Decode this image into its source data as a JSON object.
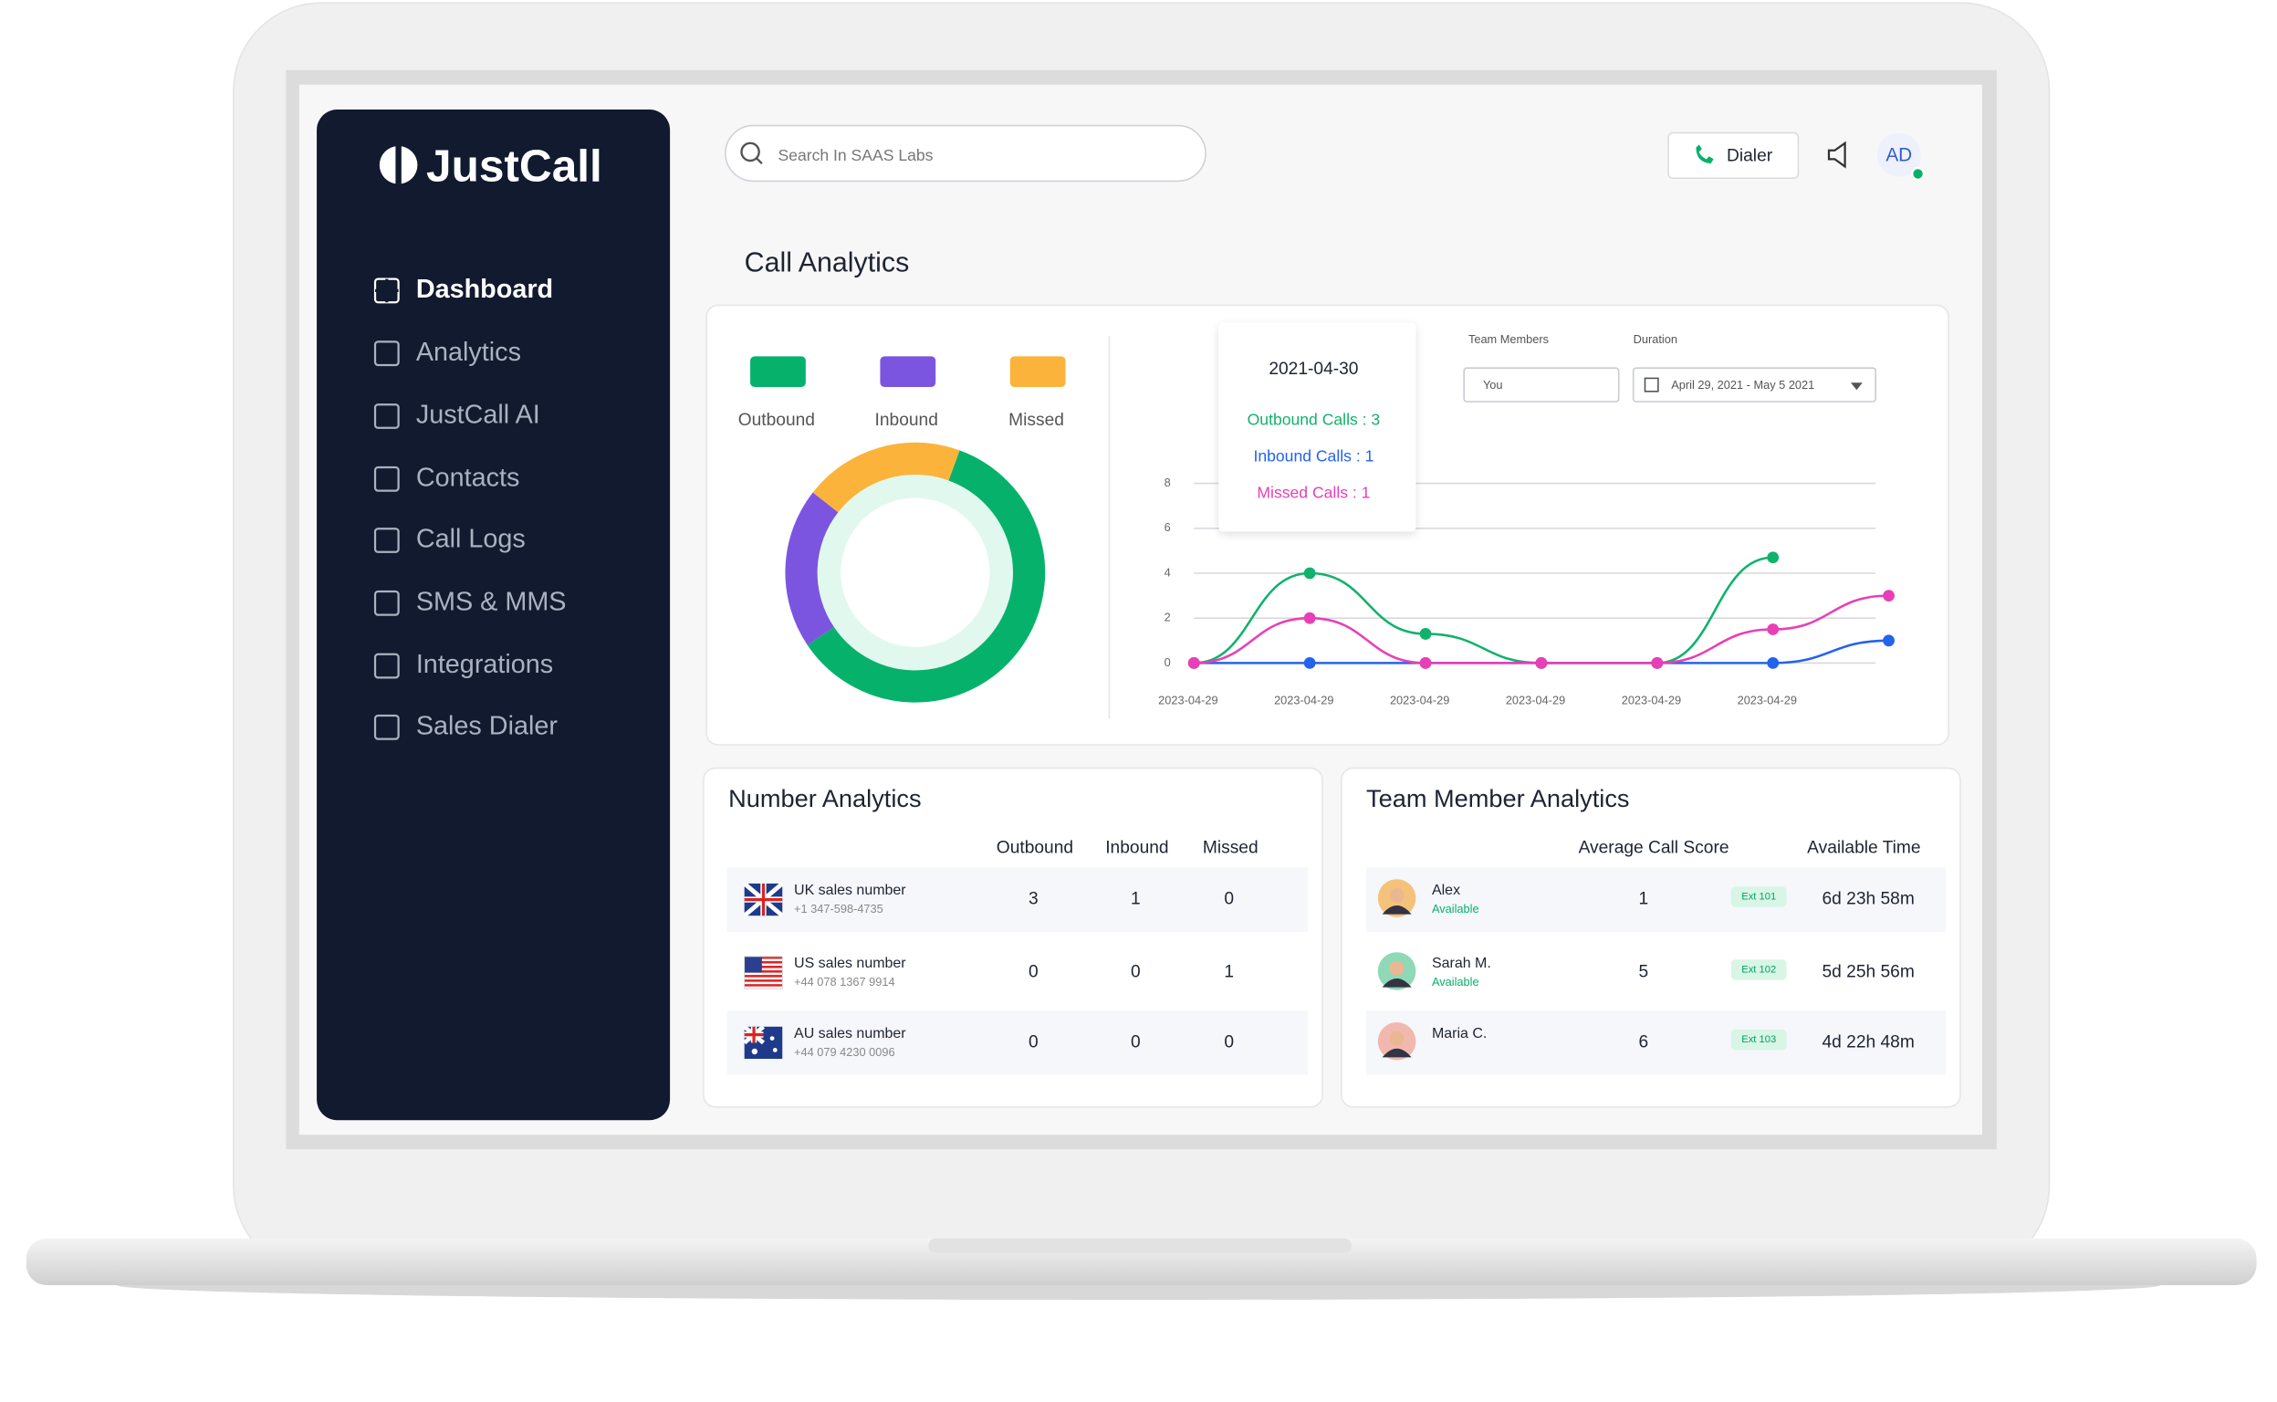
{
  "logo": "JustCall",
  "nav": [
    "Dashboard",
    "Analytics",
    "JustCall AI",
    "Contacts",
    "Call Logs",
    "SMS & MMS",
    "Integrations",
    "Sales Dialer"
  ],
  "search_placeholder": "Search In SAAS Labs",
  "dialer_button": "Dialer",
  "avatar": "AD",
  "page_title": "Call Analytics",
  "chart_data": [
    {
      "type": "pie",
      "hole": true,
      "categories": [
        "Outbound",
        "Inbound",
        "Missed"
      ],
      "values": [
        3,
        1,
        1
      ],
      "colors": [
        "#06b26b",
        "#7b55e0",
        "#fbb33b"
      ]
    },
    {
      "type": "line",
      "categories": [
        "2023-04-29",
        "2023-04-29",
        "2023-04-29",
        "2023-04-29",
        "2023-04-29",
        "2023-04-29",
        null
      ],
      "series": [
        {
          "name": "Outbound Calls",
          "color": "#10b26c",
          "values": [
            0,
            4,
            1.3,
            0,
            0,
            4.7,
            null
          ]
        },
        {
          "name": "Inbound Calls",
          "color": "#2463eb",
          "values": [
            0,
            0,
            0,
            0,
            0,
            0,
            1
          ]
        },
        {
          "name": "Missed Calls",
          "color": "#e83fb7",
          "values": [
            0,
            2,
            0,
            0,
            0,
            1.5,
            3
          ]
        }
      ],
      "ylim": [
        0,
        8
      ],
      "yticks": [
        0,
        2,
        4,
        6,
        8
      ],
      "grid": true
    }
  ],
  "tooltip": {
    "date": "2021-04-30",
    "lines": [
      "Outbound Calls : 3",
      "Inbound Calls : 1",
      "Missed Calls : 1"
    ]
  },
  "filters": {
    "team_label": "Team Members",
    "team_value": "You",
    "duration_label": "Duration",
    "duration_value": "April 29, 2021 - May 5 2021"
  },
  "number_analytics": {
    "title": "Number Analytics",
    "columns": [
      "Outbound",
      "Inbound",
      "Missed"
    ],
    "rows": [
      {
        "name": "UK sales number",
        "phone": "+1 347-598-4735",
        "cells": [
          3,
          1,
          0
        ]
      },
      {
        "name": "US sales number",
        "phone": "+44 078 1367 9914",
        "cells": [
          0,
          0,
          1
        ]
      },
      {
        "name": "AU sales number",
        "phone": "+44 079 4230 0096",
        "cells": [
          0,
          0,
          0
        ]
      }
    ]
  },
  "team_member_analytics": {
    "title": "Team Member Analytics",
    "columns": [
      "Average Call Score",
      "Available Time"
    ],
    "rows": [
      {
        "name": "Alex",
        "status": "Available",
        "score": 1,
        "ext": "Ext 101",
        "time": "6d 23h 58m"
      },
      {
        "name": "Sarah M.",
        "status": "Available",
        "score": 5,
        "ext": "Ext 102",
        "time": "5d 25h 56m"
      },
      {
        "name": "Maria C.",
        "score": 6,
        "ext": "Ext 103",
        "time": "4d 22h 48m"
      }
    ]
  }
}
